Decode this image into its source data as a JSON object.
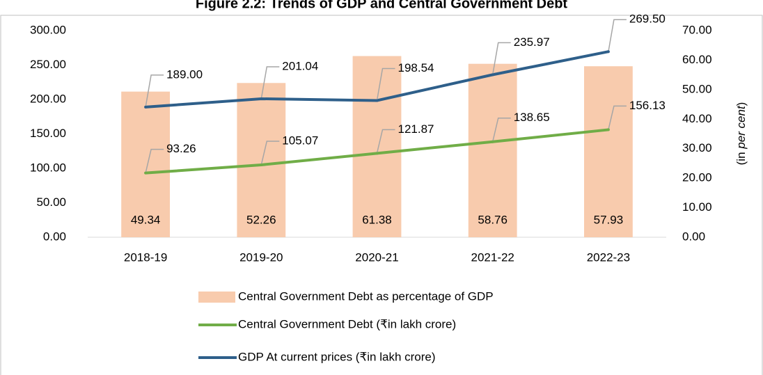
{
  "chart_data": {
    "type": "bar-line",
    "title": "Figure 2.2: Trends of GDP and Central Government Debt",
    "categories": [
      "2018-19",
      "2019-20",
      "2020-21",
      "2021-22",
      "2022-23"
    ],
    "series": [
      {
        "name": "Central Government Debt as percentage of GDP",
        "type": "bar",
        "axis": "y2",
        "color": "#f8cbad",
        "values": [
          49.34,
          52.26,
          61.38,
          58.76,
          57.93
        ]
      },
      {
        "name": "Central Government Debt (₹in lakh crore)",
        "type": "line",
        "axis": "y",
        "color": "#70ad47",
        "values": [
          93.26,
          105.07,
          121.87,
          138.65,
          156.13
        ]
      },
      {
        "name": "GDP At current prices (₹in lakh crore)",
        "type": "line",
        "axis": "y",
        "color": "#2e5f8a",
        "values": [
          189,
          201.04,
          198.54,
          235.97,
          269.5
        ],
        "value_labels": [
          "189.00",
          "201.04",
          "198.54",
          "235.97",
          "269.50"
        ]
      }
    ],
    "ylim": [
      0,
      300
    ],
    "yticks": [
      {
        "value": 0,
        "label": "0.00"
      },
      {
        "value": 50,
        "label": "50.00"
      },
      {
        "value": 100,
        "label": "100.00"
      },
      {
        "value": 150,
        "label": "150.00"
      },
      {
        "value": 200,
        "label": "200.00"
      },
      {
        "value": 250,
        "label": "250.00"
      },
      {
        "value": 300,
        "label": "300.00"
      }
    ],
    "y2lim": [
      0,
      70
    ],
    "y2ticks": [
      {
        "value": 0,
        "label": "0.00"
      },
      {
        "value": 10,
        "label": "10.00"
      },
      {
        "value": 20,
        "label": "20.00"
      },
      {
        "value": 30,
        "label": "30.00"
      },
      {
        "value": 40,
        "label": "40.00"
      },
      {
        "value": 50,
        "label": "50.00"
      },
      {
        "value": 60,
        "label": "60.00"
      },
      {
        "value": 70,
        "label": "70.00"
      }
    ],
    "y2_label": {
      "prefix": "(in ",
      "italic": "per cent",
      "suffix": ")"
    }
  }
}
